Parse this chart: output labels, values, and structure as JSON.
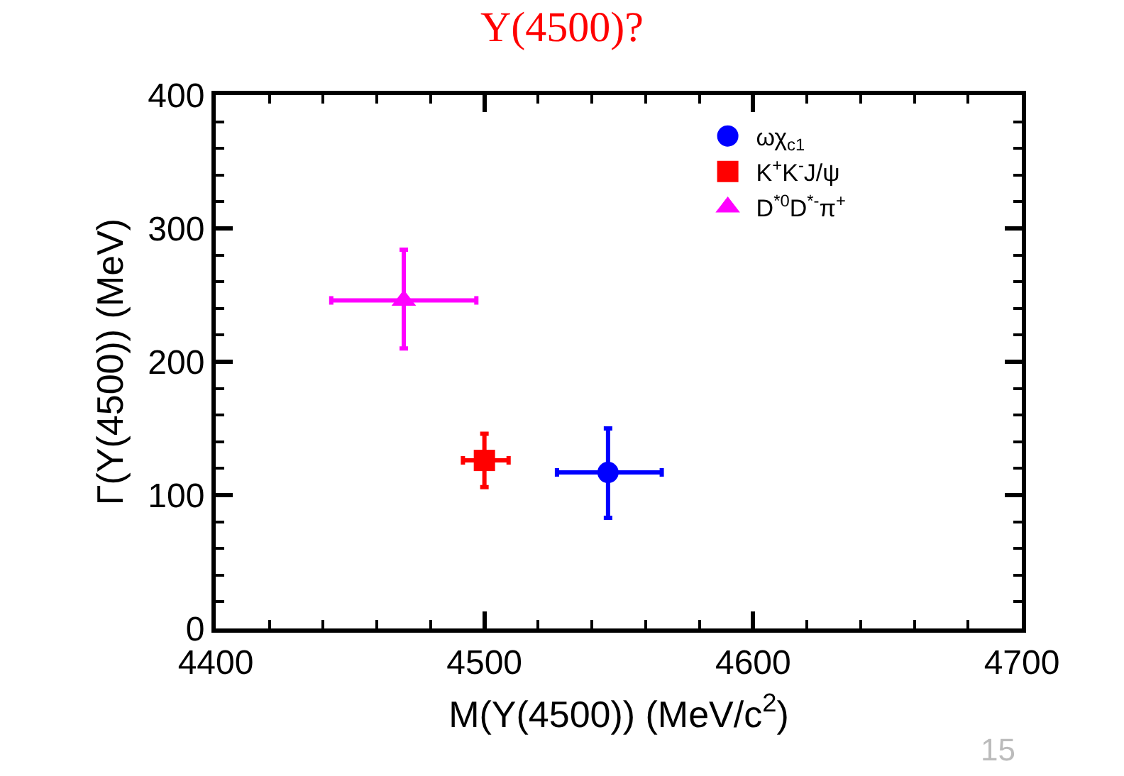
{
  "chart_data": {
    "type": "scatter",
    "title": "Y(4500)?",
    "xlabel": "M(Y(4500)) (MeV/c$^{2}$)",
    "ylabel": "Γ(Y(4500)) (MeV)",
    "xlim": [
      4400,
      4700
    ],
    "xticks": [
      4400,
      4500,
      4600,
      4700
    ],
    "ylim": [
      0,
      400
    ],
    "yticks": [
      0,
      100,
      200,
      300,
      400
    ],
    "legend": "top right",
    "series": [
      {
        "name": "ωχ$_{c1}$",
        "color": "#0000ff",
        "marker": "circle",
        "x": [
          4546
        ],
        "values": [
          117
        ],
        "errors": [
          [
            83,
            150
          ]
        ],
        "xerrors": [
          [
            4527,
            4566
          ]
        ]
      },
      {
        "name": "K$^{+}$K$^{-}$J/ψ",
        "color": "#ff0000",
        "marker": "square",
        "x": [
          4500
        ],
        "values": [
          126
        ],
        "errors": [
          [
            106,
            146
          ]
        ],
        "xerrors": [
          [
            4492,
            4509
          ]
        ]
      },
      {
        "name": "D$^{*0}$D$^{*-}$π$^{+}$",
        "color": "#ff00ff",
        "marker": "triangle",
        "x": [
          4470
        ],
        "values": [
          246
        ],
        "errors": [
          [
            210,
            284
          ]
        ],
        "xerrors": [
          [
            4443,
            4497
          ]
        ]
      }
    ],
    "annotations": [
      "15"
    ]
  }
}
